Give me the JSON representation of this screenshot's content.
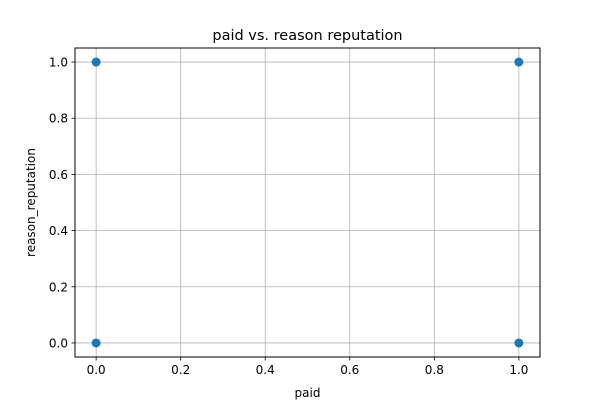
{
  "chart_data": {
    "type": "scatter",
    "title": "paid vs. reason reputation",
    "xlabel": "paid",
    "ylabel": "reason_reputation",
    "xlim": [
      -0.05,
      1.05
    ],
    "ylim": [
      -0.05,
      1.05
    ],
    "xticks": [
      0.0,
      0.2,
      0.4,
      0.6,
      0.8,
      1.0
    ],
    "yticks": [
      0.0,
      0.2,
      0.4,
      0.6,
      0.8,
      1.0
    ],
    "xtick_labels": [
      "0.0",
      "0.2",
      "0.4",
      "0.6",
      "0.8",
      "1.0"
    ],
    "ytick_labels": [
      "0.0",
      "0.2",
      "0.4",
      "0.6",
      "0.8",
      "1.0"
    ],
    "grid": true,
    "series": [
      {
        "x": [
          0,
          0,
          1,
          1
        ],
        "y": [
          0,
          1,
          0,
          1
        ],
        "color": "#1f77b4"
      }
    ]
  }
}
